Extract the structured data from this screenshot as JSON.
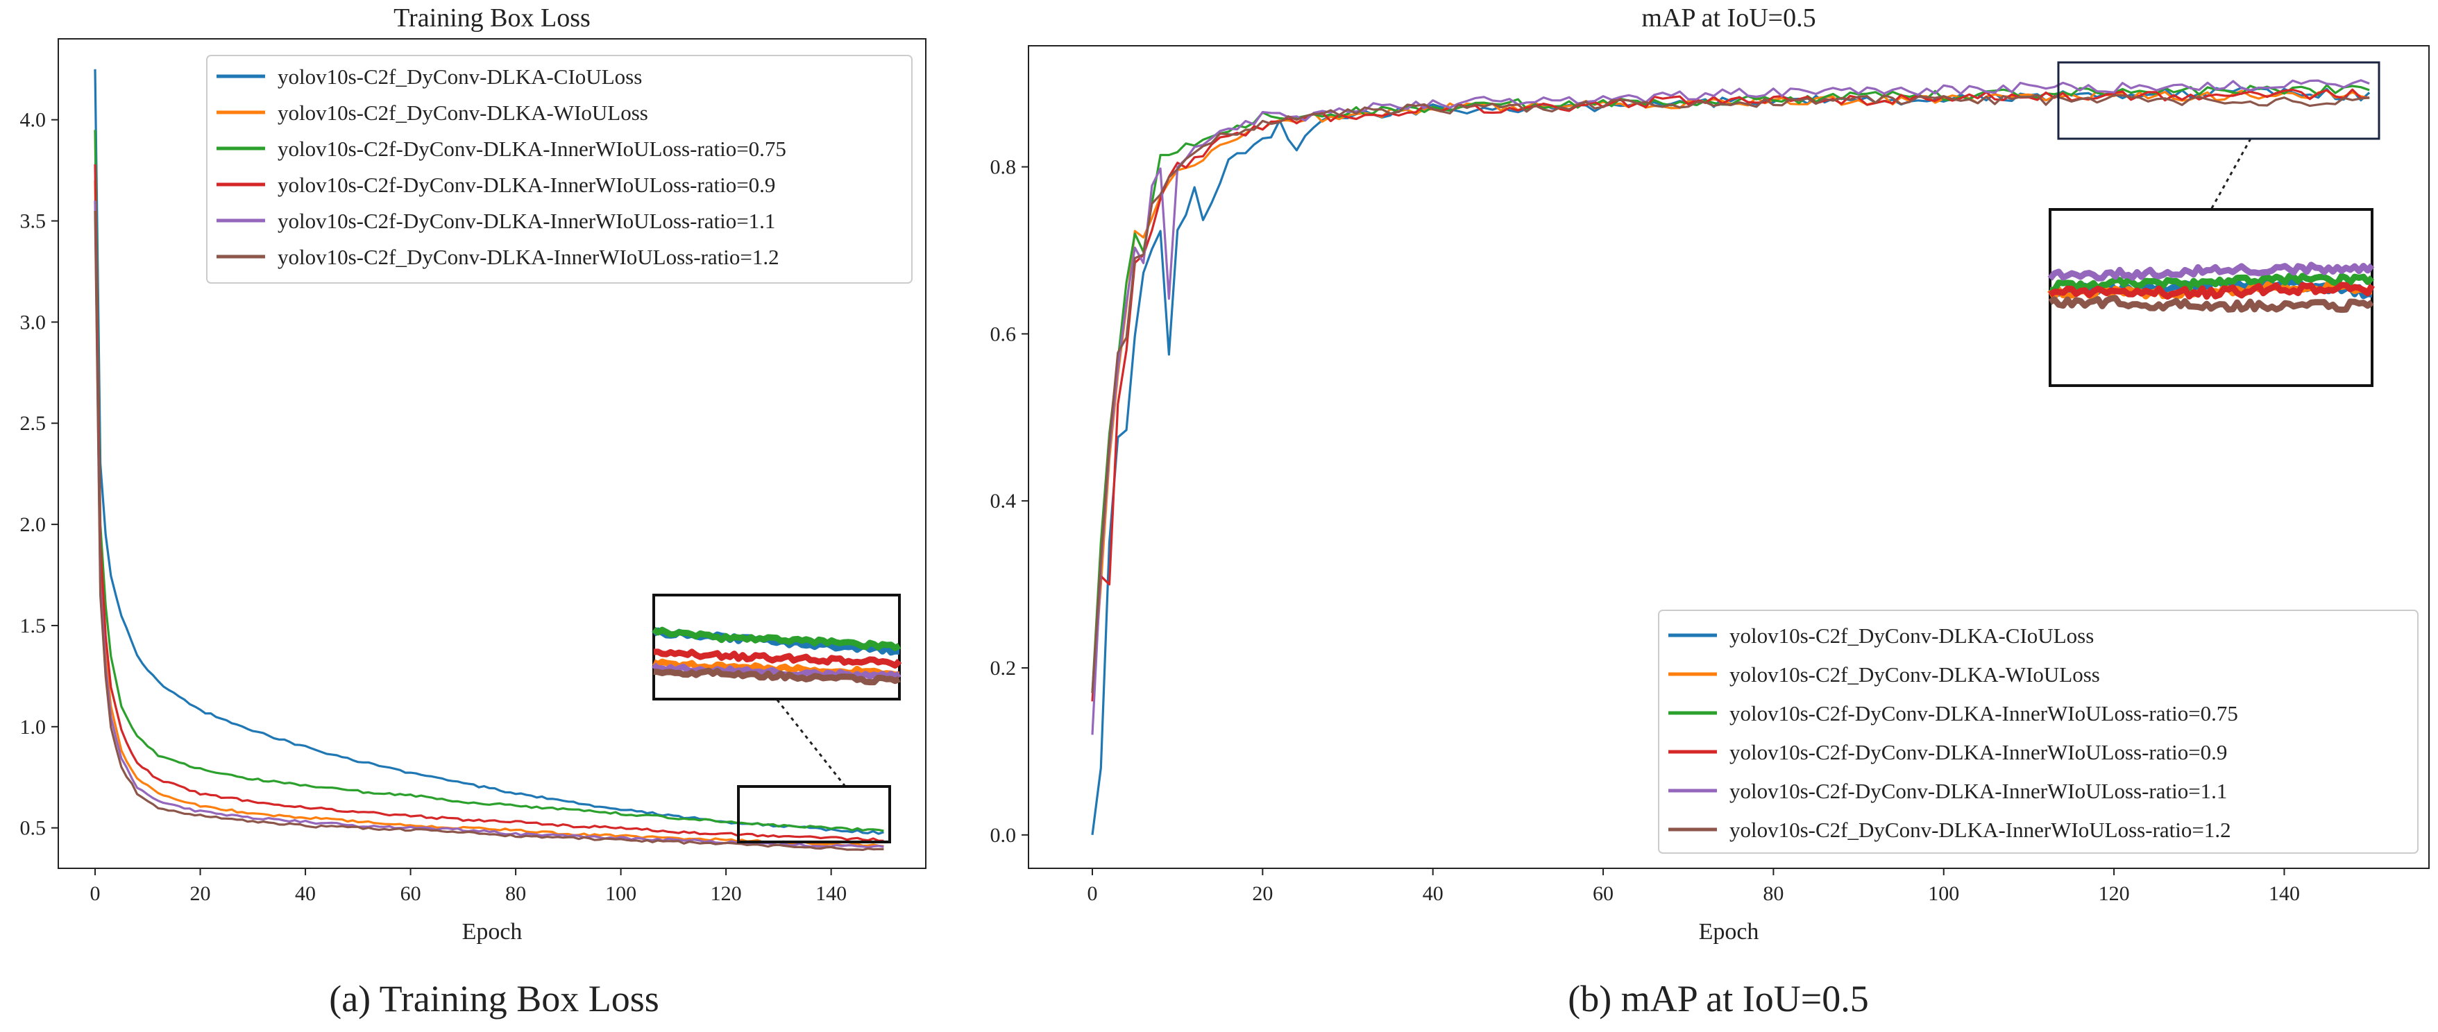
{
  "captions": {
    "left": "(a) Training Box Loss",
    "right": "(b) mAP at IoU=0.5"
  },
  "series_styles": [
    {
      "name": "yolov10s-C2f_DyConv-DLKA-CIoULoss",
      "color": "#1f77b4"
    },
    {
      "name": "yolov10s-C2f_DyConv-DLKA-WIoULoss",
      "color": "#ff7f0e"
    },
    {
      "name": "yolov10s-C2f-DyConv-DLKA-InnerWIoULoss-ratio=0.75",
      "color": "#2ca02c"
    },
    {
      "name": "yolov10s-C2f-DyConv-DLKA-InnerWIoULoss-ratio=0.9",
      "color": "#d62728"
    },
    {
      "name": "yolov10s-C2f-DyConv-DLKA-InnerWIoULoss-ratio=1.1",
      "color": "#9467bd"
    },
    {
      "name": "yolov10s-C2f_DyConv-DLKA-InnerWIoULoss-ratio=1.2",
      "color": "#8c564b"
    }
  ],
  "chart_data": [
    {
      "type": "line",
      "title": "Training Box Loss",
      "xlabel": "Epoch",
      "ylabel": "",
      "xlim": [
        -7,
        158
      ],
      "ylim": [
        0.3,
        4.4
      ],
      "xticks": [
        0,
        20,
        40,
        60,
        80,
        100,
        120,
        140
      ],
      "yticks": [
        0.5,
        1.0,
        1.5,
        2.0,
        2.5,
        3.0,
        3.5,
        4.0
      ],
      "xtick_labels": [
        "0",
        "20",
        "40",
        "60",
        "80",
        "100",
        "120",
        "140"
      ],
      "ytick_labels": [
        "0.5",
        "1.0",
        "1.5",
        "2.0",
        "2.5",
        "3.0",
        "3.5",
        "4.0"
      ],
      "legend_loc": "upper right",
      "inset": {
        "x_range": [
          121,
          150
        ],
        "y_range": [
          0.34,
          0.63
        ],
        "description": "zoomed inset of final epochs"
      },
      "series": [
        {
          "name": "yolov10s-C2f_DyConv-DLKA-CIoULoss",
          "x": [
            0,
            1,
            2,
            3,
            5,
            8,
            12,
            20,
            30,
            40,
            50,
            60,
            70,
            80,
            90,
            100,
            110,
            120,
            130,
            140,
            150
          ],
          "values": [
            4.25,
            2.3,
            1.95,
            1.75,
            1.55,
            1.35,
            1.22,
            1.08,
            0.98,
            0.9,
            0.83,
            0.77,
            0.72,
            0.67,
            0.63,
            0.59,
            0.56,
            0.53,
            0.51,
            0.49,
            0.475
          ]
        },
        {
          "name": "yolov10s-C2f_DyConv-DLKA-WIoULoss",
          "x": [
            0,
            1,
            2,
            3,
            5,
            8,
            12,
            20,
            30,
            40,
            50,
            60,
            70,
            80,
            90,
            100,
            110,
            120,
            130,
            140,
            150
          ],
          "values": [
            3.7,
            1.8,
            1.35,
            1.1,
            0.88,
            0.74,
            0.67,
            0.61,
            0.57,
            0.55,
            0.53,
            0.51,
            0.5,
            0.49,
            0.47,
            0.46,
            0.45,
            0.44,
            0.43,
            0.42,
            0.415
          ]
        },
        {
          "name": "yolov10s-C2f-DyConv-DLKA-InnerWIoULoss-ratio=0.75",
          "x": [
            0,
            1,
            2,
            3,
            5,
            8,
            12,
            20,
            30,
            40,
            50,
            60,
            70,
            80,
            90,
            100,
            110,
            120,
            130,
            140,
            150
          ],
          "values": [
            3.95,
            2.0,
            1.6,
            1.35,
            1.1,
            0.95,
            0.86,
            0.79,
            0.74,
            0.71,
            0.68,
            0.66,
            0.63,
            0.61,
            0.59,
            0.57,
            0.55,
            0.53,
            0.51,
            0.5,
            0.485
          ]
        },
        {
          "name": "yolov10s-C2f-DyConv-DLKA-InnerWIoULoss-ratio=0.9",
          "x": [
            0,
            1,
            2,
            3,
            5,
            8,
            12,
            20,
            30,
            40,
            50,
            60,
            70,
            80,
            90,
            100,
            110,
            120,
            130,
            140,
            150
          ],
          "values": [
            3.78,
            1.9,
            1.45,
            1.2,
            0.98,
            0.82,
            0.74,
            0.67,
            0.63,
            0.6,
            0.58,
            0.56,
            0.54,
            0.53,
            0.51,
            0.5,
            0.48,
            0.47,
            0.46,
            0.45,
            0.44
          ]
        },
        {
          "name": "yolov10s-C2f-DyConv-DLKA-InnerWIoULoss-ratio=1.1",
          "x": [
            0,
            1,
            2,
            3,
            5,
            8,
            12,
            20,
            30,
            40,
            50,
            60,
            70,
            80,
            90,
            100,
            110,
            120,
            130,
            140,
            150
          ],
          "values": [
            3.6,
            1.7,
            1.3,
            1.05,
            0.84,
            0.7,
            0.63,
            0.58,
            0.55,
            0.53,
            0.51,
            0.5,
            0.49,
            0.47,
            0.46,
            0.45,
            0.44,
            0.43,
            0.42,
            0.41,
            0.405
          ]
        },
        {
          "name": "yolov10s-C2f_DyConv-DLKA-InnerWIoULoss-ratio=1.2",
          "x": [
            0,
            1,
            2,
            3,
            5,
            8,
            12,
            20,
            30,
            40,
            50,
            60,
            70,
            80,
            90,
            100,
            110,
            120,
            130,
            140,
            150
          ],
          "values": [
            3.55,
            1.65,
            1.25,
            1.0,
            0.8,
            0.67,
            0.6,
            0.56,
            0.53,
            0.51,
            0.5,
            0.49,
            0.48,
            0.46,
            0.45,
            0.44,
            0.43,
            0.42,
            0.41,
            0.4,
            0.39
          ]
        }
      ]
    },
    {
      "type": "line",
      "title": "mAP at IoU=0.5",
      "xlabel": "Epoch",
      "ylabel": "",
      "xlim": [
        -7.5,
        157
      ],
      "ylim": [
        -0.04,
        0.945
      ],
      "xticks": [
        0,
        20,
        40,
        60,
        80,
        100,
        120,
        140
      ],
      "yticks": [
        0.0,
        0.2,
        0.4,
        0.6,
        0.8
      ],
      "xtick_labels": [
        "0",
        "20",
        "40",
        "60",
        "80",
        "100",
        "120",
        "140"
      ],
      "ytick_labels": [
        "0.0",
        "0.2",
        "0.4",
        "0.6",
        "0.8"
      ],
      "legend_loc": "lower right",
      "inset": {
        "x_range": [
          113,
          150
        ],
        "y_range": [
          0.835,
          0.93
        ],
        "description": "zoomed inset of final epochs"
      },
      "series": [
        {
          "name": "yolov10s-C2f_DyConv-DLKA-CIoULoss",
          "x": [
            0,
            1,
            2,
            3,
            4,
            5,
            6,
            7,
            8,
            9,
            10,
            11,
            12,
            13,
            14,
            15,
            16,
            18,
            20,
            22,
            24,
            26,
            28,
            30,
            40,
            50,
            60,
            70,
            80,
            90,
            100,
            110,
            120,
            130,
            140,
            150
          ],
          "values": [
            0.0,
            0.08,
            0.35,
            0.48,
            0.49,
            0.6,
            0.67,
            0.7,
            0.72,
            0.58,
            0.73,
            0.74,
            0.77,
            0.74,
            0.76,
            0.78,
            0.81,
            0.82,
            0.83,
            0.85,
            0.82,
            0.85,
            0.86,
            0.86,
            0.87,
            0.87,
            0.87,
            0.875,
            0.88,
            0.88,
            0.88,
            0.885,
            0.888,
            0.888,
            0.89,
            0.885
          ]
        },
        {
          "name": "yolov10s-C2f_DyConv-DLKA-WIoULoss",
          "x": [
            0,
            1,
            2,
            3,
            4,
            5,
            6,
            7,
            8,
            9,
            10,
            12,
            15,
            20,
            25,
            30,
            40,
            50,
            60,
            70,
            80,
            90,
            100,
            110,
            120,
            130,
            140,
            150
          ],
          "values": [
            0.16,
            0.3,
            0.45,
            0.55,
            0.63,
            0.72,
            0.72,
            0.74,
            0.76,
            0.78,
            0.79,
            0.8,
            0.83,
            0.85,
            0.86,
            0.86,
            0.87,
            0.87,
            0.875,
            0.875,
            0.88,
            0.88,
            0.88,
            0.885,
            0.885,
            0.885,
            0.888,
            0.888
          ]
        },
        {
          "name": "yolov10s-C2f-DyConv-DLKA-InnerWIoULoss-ratio=0.75",
          "x": [
            0,
            1,
            2,
            3,
            4,
            5,
            6,
            7,
            8,
            9,
            10,
            12,
            15,
            20,
            25,
            30,
            40,
            50,
            60,
            70,
            80,
            90,
            100,
            110,
            120,
            130,
            140,
            150
          ],
          "values": [
            0.17,
            0.35,
            0.48,
            0.57,
            0.66,
            0.72,
            0.7,
            0.76,
            0.81,
            0.81,
            0.82,
            0.83,
            0.84,
            0.86,
            0.86,
            0.865,
            0.87,
            0.875,
            0.875,
            0.88,
            0.88,
            0.885,
            0.885,
            0.888,
            0.89,
            0.89,
            0.892,
            0.892
          ]
        },
        {
          "name": "yolov10s-C2f-DyConv-DLKA-InnerWIoULoss-ratio=0.9",
          "x": [
            0,
            1,
            2,
            3,
            4,
            5,
            6,
            7,
            8,
            9,
            10,
            12,
            15,
            20,
            25,
            30,
            40,
            50,
            60,
            70,
            80,
            90,
            100,
            110,
            120,
            130,
            140,
            150
          ],
          "values": [
            0.16,
            0.31,
            0.3,
            0.52,
            0.58,
            0.68,
            0.7,
            0.73,
            0.76,
            0.79,
            0.8,
            0.81,
            0.83,
            0.85,
            0.86,
            0.86,
            0.87,
            0.87,
            0.875,
            0.88,
            0.88,
            0.88,
            0.882,
            0.885,
            0.885,
            0.885,
            0.887,
            0.887
          ]
        },
        {
          "name": "yolov10s-C2f-DyConv-DLKA-InnerWIoULoss-ratio=1.1",
          "x": [
            0,
            1,
            2,
            3,
            4,
            5,
            6,
            7,
            8,
            9,
            10,
            12,
            15,
            20,
            25,
            30,
            40,
            50,
            60,
            70,
            80,
            90,
            100,
            110,
            120,
            130,
            140,
            150
          ],
          "values": [
            0.12,
            0.32,
            0.46,
            0.56,
            0.64,
            0.7,
            0.68,
            0.78,
            0.8,
            0.64,
            0.8,
            0.82,
            0.84,
            0.86,
            0.86,
            0.87,
            0.875,
            0.88,
            0.88,
            0.885,
            0.89,
            0.89,
            0.893,
            0.895,
            0.895,
            0.897,
            0.898,
            0.898
          ]
        },
        {
          "name": "yolov10s-C2f_DyConv-DLKA-InnerWIoULoss-ratio=1.2",
          "x": [
            0,
            1,
            2,
            3,
            4,
            5,
            6,
            7,
            8,
            9,
            10,
            12,
            15,
            20,
            25,
            30,
            40,
            50,
            60,
            70,
            80,
            90,
            100,
            110,
            120,
            130,
            140,
            150
          ],
          "values": [
            0.17,
            0.33,
            0.47,
            0.58,
            0.6,
            0.69,
            0.7,
            0.75,
            0.77,
            0.79,
            0.8,
            0.82,
            0.84,
            0.85,
            0.86,
            0.865,
            0.87,
            0.87,
            0.875,
            0.875,
            0.878,
            0.88,
            0.88,
            0.88,
            0.88,
            0.878,
            0.878,
            0.878
          ]
        }
      ]
    }
  ]
}
